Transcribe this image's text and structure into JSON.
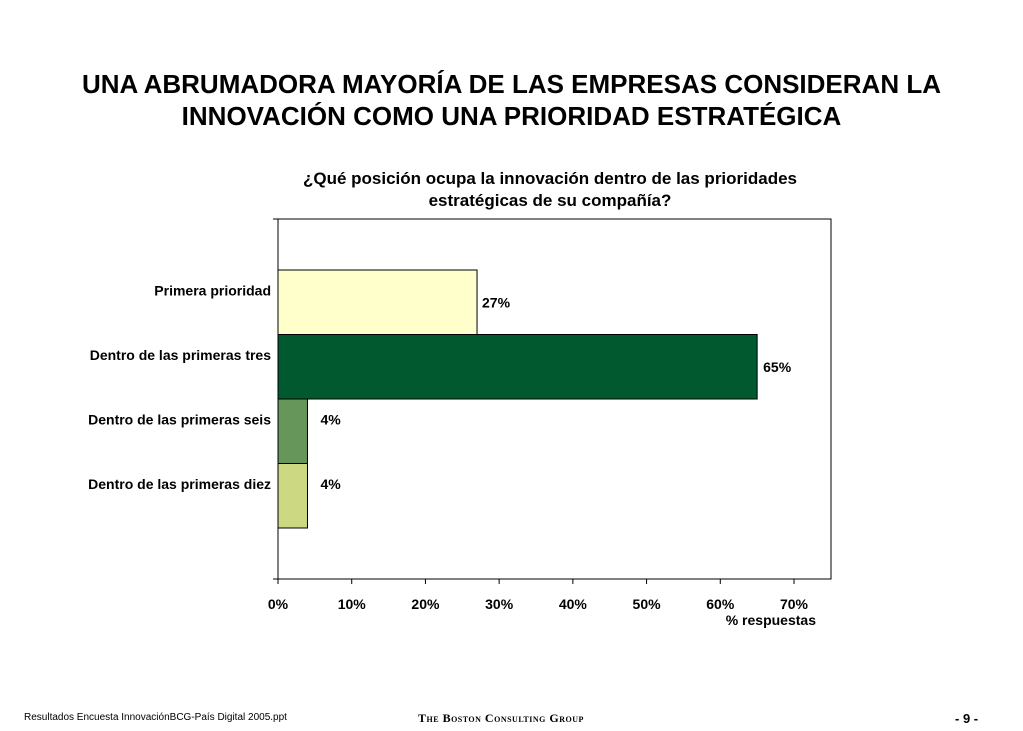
{
  "slide": {
    "title_line1": "UNA ABRUMADORA MAYORÍA DE LAS EMPRESAS CONSIDERAN LA",
    "title_line2": "INNOVACIÓN COMO UNA PRIORIDAD ESTRATÉGICA"
  },
  "chart_data": {
    "type": "bar",
    "orientation": "horizontal",
    "title_line1": "¿Qué posición ocupa la innovación dentro de las prioridades",
    "title_line2": "estratégicas de su compañía?",
    "categories": [
      "Primera prioridad",
      "Dentro de las primeras tres",
      "Dentro de las primeras seis",
      "Dentro de las primeras diez"
    ],
    "values": [
      27,
      65,
      4,
      4
    ],
    "value_labels": [
      "27%",
      "65%",
      "4%",
      "4%"
    ],
    "colors": [
      "#ffffcc",
      "#00592f",
      "#66965a",
      "#ccd882"
    ],
    "xlabel": "% respuestas",
    "ylabel": "",
    "xlim": [
      0,
      70
    ],
    "xticks": [
      "0%",
      "10%",
      "20%",
      "30%",
      "40%",
      "50%",
      "60%",
      "70%"
    ],
    "grid": false,
    "legend": "none"
  },
  "footer": {
    "source": "Resultados Encuesta InnovaciónBCG-País Digital 2005.ppt",
    "brand": "The Boston Consulting Group",
    "page": "- 9 -"
  }
}
